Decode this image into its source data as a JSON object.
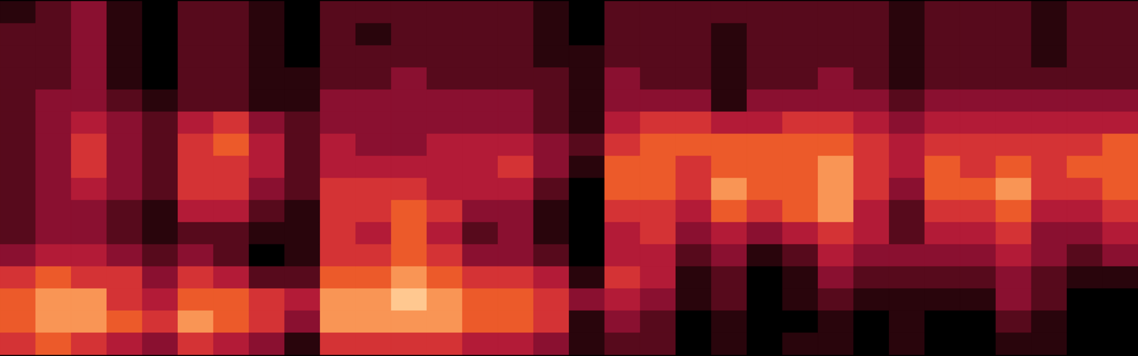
{
  "chart_data": {
    "type": "heatmap",
    "tick_labels": false,
    "zlim": [
      0,
      9
    ],
    "time_columns": [
      [
        1,
        2,
        2,
        2,
        2,
        2,
        2,
        2,
        2,
        2,
        2,
        3,
        5,
        6,
        6,
        5
      ],
      [
        2,
        2,
        2,
        2,
        3,
        3,
        3,
        3,
        3,
        3,
        3,
        4,
        6,
        7,
        7,
        6
      ],
      [
        3,
        3,
        3,
        3,
        3,
        4,
        5,
        5,
        4,
        3,
        3,
        4,
        5,
        7,
        7,
        5
      ],
      [
        1,
        1,
        1,
        1,
        2,
        3,
        3,
        3,
        3,
        2,
        2,
        3,
        5,
        5,
        6,
        4
      ],
      [
        0,
        0,
        0,
        0,
        1,
        2,
        2,
        2,
        2,
        1,
        1,
        2,
        3,
        4,
        5,
        3
      ],
      [
        2,
        2,
        2,
        2,
        2,
        4,
        5,
        5,
        5,
        4,
        2,
        3,
        5,
        6,
        7,
        5
      ],
      [
        2,
        2,
        2,
        2,
        2,
        5,
        6,
        5,
        5,
        4,
        2,
        2,
        4,
        6,
        6,
        4
      ],
      [
        1,
        1,
        1,
        1,
        1,
        3,
        4,
        4,
        3,
        2,
        1,
        0,
        2,
        5,
        5,
        3
      ],
      [
        0,
        0,
        0,
        1,
        1,
        2,
        2,
        2,
        2,
        1,
        1,
        1,
        2,
        4,
        3,
        1
      ],
      [
        2,
        2,
        2,
        2,
        3,
        3,
        4,
        4,
        5,
        5,
        5,
        5,
        6,
        7,
        7,
        5
      ],
      [
        2,
        1,
        2,
        2,
        3,
        3,
        3,
        4,
        5,
        5,
        4,
        5,
        6,
        7,
        7,
        5
      ],
      [
        2,
        2,
        2,
        3,
        3,
        3,
        3,
        4,
        5,
        6,
        6,
        6,
        7,
        8,
        7,
        5
      ],
      [
        2,
        2,
        2,
        2,
        3,
        3,
        4,
        4,
        4,
        5,
        4,
        5,
        6,
        7,
        7,
        5
      ],
      [
        2,
        2,
        2,
        2,
        3,
        3,
        4,
        4,
        4,
        3,
        2,
        3,
        5,
        6,
        6,
        4
      ],
      [
        2,
        2,
        2,
        2,
        3,
        3,
        4,
        5,
        4,
        3,
        3,
        3,
        5,
        6,
        6,
        4
      ],
      [
        1,
        1,
        1,
        2,
        2,
        2,
        3,
        3,
        2,
        1,
        1,
        2,
        4,
        5,
        5,
        3
      ],
      [
        0,
        0,
        1,
        1,
        1,
        1,
        2,
        1,
        0,
        0,
        0,
        0,
        1,
        3,
        1,
        1
      ],
      [
        2,
        2,
        2,
        3,
        3,
        4,
        5,
        6,
        6,
        5,
        4,
        4,
        5,
        4,
        3,
        2
      ],
      [
        2,
        2,
        2,
        2,
        3,
        5,
        6,
        6,
        6,
        5,
        5,
        4,
        4,
        3,
        2,
        2
      ],
      [
        2,
        2,
        2,
        2,
        3,
        5,
        6,
        5,
        5,
        4,
        3,
        2,
        1,
        1,
        0,
        0
      ],
      [
        2,
        1,
        1,
        1,
        1,
        4,
        6,
        6,
        7,
        6,
        4,
        3,
        2,
        2,
        1,
        1
      ],
      [
        2,
        2,
        2,
        2,
        3,
        4,
        6,
        6,
        6,
        5,
        3,
        1,
        0,
        0,
        0,
        0
      ],
      [
        2,
        2,
        2,
        2,
        3,
        5,
        6,
        6,
        6,
        6,
        4,
        2,
        1,
        1,
        0,
        1
      ],
      [
        2,
        2,
        2,
        3,
        3,
        5,
        6,
        7,
        7,
        7,
        5,
        4,
        3,
        2,
        1,
        1
      ],
      [
        2,
        2,
        2,
        2,
        3,
        4,
        5,
        5,
        5,
        4,
        4,
        3,
        2,
        1,
        0,
        0
      ],
      [
        1,
        1,
        1,
        1,
        2,
        3,
        4,
        4,
        3,
        2,
        2,
        3,
        2,
        1,
        1,
        1
      ],
      [
        2,
        2,
        2,
        2,
        3,
        4,
        5,
        6,
        6,
        5,
        4,
        3,
        2,
        1,
        0,
        0
      ],
      [
        2,
        2,
        2,
        2,
        3,
        4,
        5,
        5,
        6,
        5,
        4,
        3,
        2,
        1,
        0,
        0
      ],
      [
        2,
        2,
        2,
        2,
        3,
        4,
        5,
        6,
        7,
        6,
        5,
        4,
        3,
        3,
        2,
        1
      ],
      [
        1,
        1,
        1,
        2,
        3,
        4,
        5,
        5,
        5,
        4,
        3,
        3,
        2,
        2,
        1,
        1
      ],
      [
        2,
        2,
        2,
        2,
        3,
        4,
        5,
        6,
        5,
        4,
        3,
        2,
        1,
        0,
        0,
        0
      ],
      [
        2,
        2,
        2,
        2,
        3,
        4,
        6,
        6,
        6,
        5,
        4,
        3,
        1,
        0,
        0,
        0
      ]
    ]
  }
}
